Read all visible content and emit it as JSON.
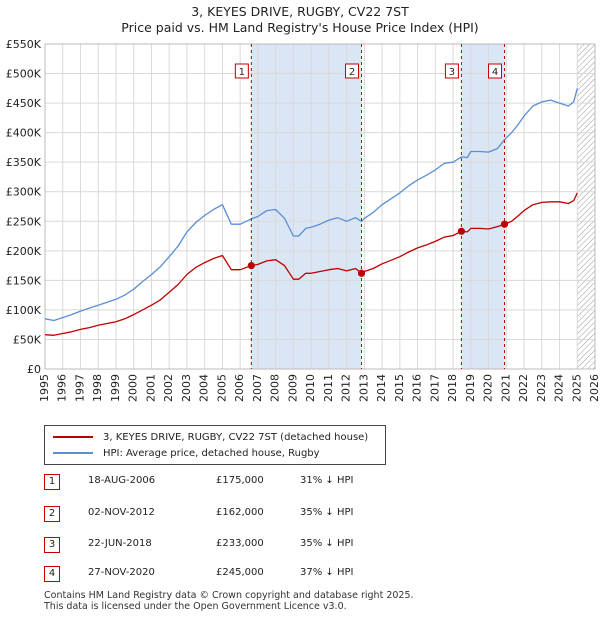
{
  "title": "3, KEYES DRIVE, RUGBY, CV22 7ST",
  "subtitle": "Price paid vs. HM Land Registry's House Price Index (HPI)",
  "colors": {
    "property": "#c00000",
    "hpi": "#5b8ed6",
    "shade": "#dbe6f5"
  },
  "chart_data": {
    "type": "line",
    "title": "3, KEYES DRIVE, RUGBY, CV22 7ST",
    "xlim": [
      1995,
      2026
    ],
    "ylim": [
      0,
      550000
    ],
    "x_ticks": [
      "1995",
      "1996",
      "1997",
      "1998",
      "1999",
      "2000",
      "2001",
      "2002",
      "2003",
      "2004",
      "2005",
      "2006",
      "2007",
      "2008",
      "2009",
      "2010",
      "2011",
      "2012",
      "2013",
      "2014",
      "2015",
      "2016",
      "2017",
      "2018",
      "2019",
      "2020",
      "2021",
      "2022",
      "2023",
      "2024",
      "2025",
      "2026"
    ],
    "y_ticks": [
      {
        "value": 0,
        "label": "£0"
      },
      {
        "value": 50000,
        "label": "£50K"
      },
      {
        "value": 100000,
        "label": "£100K"
      },
      {
        "value": 150000,
        "label": "£150K"
      },
      {
        "value": 200000,
        "label": "£200K"
      },
      {
        "value": 250000,
        "label": "£250K"
      },
      {
        "value": 300000,
        "label": "£300K"
      },
      {
        "value": 350000,
        "label": "£350K"
      },
      {
        "value": 400000,
        "label": "£400K"
      },
      {
        "value": 450000,
        "label": "£450K"
      },
      {
        "value": 500000,
        "label": "£500K"
      },
      {
        "value": 550000,
        "label": "£550K"
      }
    ],
    "series": [
      {
        "name": "3, KEYES DRIVE, RUGBY, CV22 7ST (detached house)",
        "x": [
          1995,
          1995.5,
          1996,
          1996.5,
          1997,
          1997.5,
          1998,
          1998.5,
          1999,
          1999.5,
          2000,
          2000.5,
          2001,
          2001.5,
          2002,
          2002.5,
          2003,
          2003.5,
          2004,
          2004.5,
          2005,
          2005.5,
          2006,
          2006.63,
          2007,
          2007.5,
          2008,
          2008.5,
          2009,
          2009.3,
          2009.7,
          2010,
          2010.5,
          2011,
          2011.5,
          2012,
          2012.5,
          2012.84,
          2013,
          2013.5,
          2014,
          2014.5,
          2015,
          2015.5,
          2016,
          2016.5,
          2017,
          2017.5,
          2018,
          2018.47,
          2018.8,
          2019,
          2019.5,
          2020,
          2020.5,
          2020.9,
          2021.3,
          2021.7,
          2022,
          2022.5,
          2023,
          2023.5,
          2024,
          2024.5,
          2024.8,
          2025.0
        ],
        "values": [
          58000,
          57000,
          60000,
          63000,
          67000,
          70000,
          74000,
          77000,
          80000,
          85000,
          92000,
          100000,
          108000,
          117000,
          130000,
          143000,
          160000,
          172000,
          180000,
          187000,
          192000,
          168000,
          168000,
          175000,
          177000,
          183000,
          185000,
          175000,
          152000,
          152000,
          162000,
          162000,
          165000,
          168000,
          170000,
          166000,
          170000,
          162000,
          165000,
          170000,
          178000,
          184000,
          190000,
          198000,
          205000,
          210000,
          216000,
          223000,
          226000,
          233000,
          232000,
          238000,
          238000,
          237000,
          241000,
          245000,
          250000,
          260000,
          268000,
          278000,
          282000,
          283000,
          283000,
          280000,
          285000,
          298000
        ]
      },
      {
        "name": "HPI: Average price, detached house, Rugby",
        "x": [
          1995,
          1995.5,
          1996,
          1996.5,
          1997,
          1997.5,
          1998,
          1998.5,
          1999,
          1999.5,
          2000,
          2000.5,
          2001,
          2001.5,
          2002,
          2002.5,
          2003,
          2003.5,
          2004,
          2004.5,
          2005,
          2005.5,
          2006,
          2006.63,
          2007,
          2007.5,
          2008,
          2008.5,
          2009,
          2009.3,
          2009.7,
          2010,
          2010.5,
          2011,
          2011.5,
          2012,
          2012.5,
          2012.84,
          2013,
          2013.5,
          2014,
          2014.5,
          2015,
          2015.5,
          2016,
          2016.5,
          2017,
          2017.5,
          2018,
          2018.47,
          2018.8,
          2019,
          2019.5,
          2020,
          2020.5,
          2020.9,
          2021.3,
          2021.7,
          2022,
          2022.5,
          2023,
          2023.5,
          2024,
          2024.5,
          2024.8,
          2025.0
        ],
        "values": [
          85000,
          82000,
          87000,
          92000,
          98000,
          103000,
          108000,
          113000,
          118000,
          125000,
          135000,
          148000,
          160000,
          173000,
          190000,
          208000,
          232000,
          248000,
          260000,
          270000,
          278000,
          245000,
          245000,
          254000,
          258000,
          268000,
          270000,
          255000,
          225000,
          225000,
          238000,
          240000,
          245000,
          252000,
          256000,
          250000,
          256000,
          250000,
          255000,
          265000,
          278000,
          288000,
          298000,
          310000,
          320000,
          328000,
          337000,
          348000,
          350000,
          359000,
          358000,
          368000,
          368000,
          367000,
          373000,
          388000,
          400000,
          415000,
          428000,
          445000,
          452000,
          455000,
          450000,
          445000,
          452000,
          475000
        ]
      }
    ],
    "sales": [
      {
        "id": "1",
        "x": 2006.63,
        "value": 175000
      },
      {
        "id": "2",
        "x": 2012.84,
        "value": 162000
      },
      {
        "id": "3",
        "x": 2018.47,
        "value": 233000
      },
      {
        "id": "4",
        "x": 2020.9,
        "value": 245000
      }
    ],
    "shaded_spans": [
      [
        2006.63,
        2012.84
      ],
      [
        2018.47,
        2020.9
      ]
    ],
    "hatched_from": 2025.0
  },
  "legend": {
    "property": "3, KEYES DRIVE, RUGBY, CV22 7ST (detached house)",
    "hpi": "HPI: Average price, detached house, Rugby"
  },
  "transactions": [
    {
      "id": "1",
      "date": "18-AUG-2006",
      "price": "£175,000",
      "hpi": "31% ↓ HPI"
    },
    {
      "id": "2",
      "date": "02-NOV-2012",
      "price": "£162,000",
      "hpi": "35% ↓ HPI"
    },
    {
      "id": "3",
      "date": "22-JUN-2018",
      "price": "£233,000",
      "hpi": "35% ↓ HPI"
    },
    {
      "id": "4",
      "date": "27-NOV-2020",
      "price": "£245,000",
      "hpi": "37% ↓ HPI"
    }
  ],
  "footer": {
    "line1": "Contains HM Land Registry data © Crown copyright and database right 2025.",
    "line2": "This data is licensed under the Open Government Licence v3.0."
  }
}
